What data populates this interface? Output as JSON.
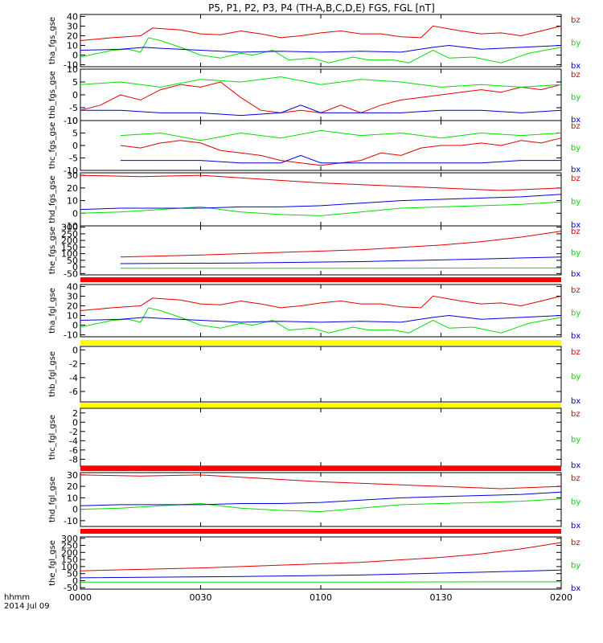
{
  "header": {
    "title": "P5, P1, P2, P3, P4 (TH-A,B,C,D,E) FGS, FGL [nT]"
  },
  "footer": {
    "time_label": "hhmm",
    "date_label": "2014 Jul 09"
  },
  "colors": {
    "bz": "#e00000",
    "by": "#00e000",
    "bx": "#0000e0",
    "red_bar": "#ff0000",
    "yellow_bar": "#ffff00",
    "axis": "#000000"
  },
  "chart_data": {
    "type": "line",
    "xlabel": "",
    "x_ticks": [
      "0000",
      "0030",
      "0100",
      "0130",
      "0200"
    ],
    "x_range_minutes": [
      0,
      120
    ],
    "panels": [
      {
        "ylabel": "tha_fgs_gse",
        "ylim": [
          -12,
          42
        ],
        "yticks": [
          "40",
          "30",
          "20",
          "10",
          "0",
          "-10"
        ],
        "series": [
          {
            "name": "bz",
            "x": [
              0,
              8,
              15,
              18,
              25,
              30,
              35,
              40,
              45,
              50,
              55,
              60,
              65,
              70,
              75,
              80,
              85,
              88,
              95,
              100,
              105,
              110,
              115,
              120
            ],
            "y": [
              15,
              18,
              20,
              28,
              26,
              22,
              21,
              25,
              22,
              18,
              20,
              23,
              25,
              22,
              22,
              19,
              18,
              30,
              25,
              22,
              23,
              20,
              25,
              30
            ]
          },
          {
            "name": "by",
            "x": [
              0,
              8,
              12,
              15,
              17,
              20,
              25,
              30,
              35,
              40,
              43,
              48,
              52,
              58,
              62,
              68,
              72,
              78,
              82,
              88,
              92,
              98,
              105,
              112,
              120
            ],
            "y": [
              -2,
              5,
              6,
              3,
              18,
              15,
              8,
              0,
              -3,
              2,
              0,
              5,
              -5,
              -3,
              -8,
              -2,
              -5,
              -5,
              -8,
              5,
              -3,
              -2,
              -8,
              2,
              8
            ]
          },
          {
            "name": "bx",
            "x": [
              0,
              10,
              16,
              20,
              30,
              40,
              50,
              60,
              70,
              80,
              88,
              92,
              100,
              110,
              120
            ],
            "y": [
              5,
              6,
              8,
              7,
              5,
              3,
              4,
              3,
              4,
              3,
              8,
              10,
              6,
              8,
              10
            ]
          }
        ]
      },
      {
        "ylabel": "thb_fgs_gse",
        "ylim": [
          -10,
          10
        ],
        "yticks": [
          "10",
          "5",
          "0",
          "-5",
          "-10"
        ],
        "series": [
          {
            "name": "bz",
            "x": [
              0,
              5,
              10,
              15,
              20,
              25,
              30,
              35,
              40,
              45,
              50,
              55,
              60,
              65,
              70,
              75,
              80,
              85,
              90,
              95,
              100,
              105,
              110,
              115,
              120
            ],
            "y": [
              -6,
              -4,
              0,
              -2,
              2,
              4,
              3,
              5,
              -1,
              -6,
              -7,
              -6,
              -7,
              -4,
              -7,
              -4,
              -2,
              -1,
              0,
              1,
              2,
              1,
              3,
              2,
              4
            ]
          },
          {
            "name": "by",
            "x": [
              0,
              10,
              20,
              30,
              40,
              50,
              60,
              70,
              80,
              90,
              100,
              110,
              120
            ],
            "y": [
              4,
              5,
              3,
              6,
              5,
              7,
              4,
              6,
              5,
              3,
              4,
              3,
              4
            ]
          },
          {
            "name": "bx",
            "x": [
              0,
              10,
              20,
              30,
              40,
              50,
              55,
              60,
              70,
              80,
              90,
              100,
              110,
              120
            ],
            "y": [
              -6,
              -6,
              -7,
              -7,
              -8,
              -7,
              -4,
              -7,
              -7,
              -7,
              -6,
              -6,
              -7,
              -6
            ]
          }
        ]
      },
      {
        "ylabel": "thc_fgs_gse",
        "ylim": [
          -10,
          10
        ],
        "yticks": [
          "10",
          "5",
          "0",
          "-5",
          "-10"
        ],
        "series": [
          {
            "name": "bz",
            "x": [
              10,
              15,
              20,
              25,
              30,
              35,
              40,
              45,
              50,
              55,
              60,
              65,
              70,
              75,
              80,
              85,
              90,
              95,
              100,
              105,
              110,
              115,
              120
            ],
            "y": [
              0,
              -1,
              1,
              2,
              1,
              -2,
              -3,
              -4,
              -6,
              -7,
              -8,
              -7,
              -6,
              -3,
              -4,
              -1,
              0,
              0,
              1,
              0,
              2,
              1,
              3
            ]
          },
          {
            "name": "by",
            "x": [
              10,
              20,
              30,
              40,
              50,
              60,
              70,
              80,
              90,
              100,
              110,
              120
            ],
            "y": [
              4,
              5,
              2,
              5,
              3,
              6,
              4,
              5,
              3,
              5,
              4,
              5
            ]
          },
          {
            "name": "bx",
            "x": [
              10,
              20,
              30,
              40,
              50,
              55,
              60,
              70,
              80,
              90,
              100,
              110,
              120
            ],
            "y": [
              -6,
              -6,
              -6,
              -7,
              -7,
              -4,
              -7,
              -7,
              -7,
              -7,
              -7,
              -6,
              -6
            ]
          }
        ]
      },
      {
        "ylabel": "thd_fgs_gse",
        "ylim": [
          -10,
          32
        ],
        "yticks": [
          "30",
          "20",
          "10",
          "0",
          "-10"
        ],
        "series": [
          {
            "name": "bz",
            "x": [
              0,
              15,
              30,
              45,
              60,
              75,
              90,
              105,
              120
            ],
            "y": [
              30,
              29,
              30,
              27,
              24,
              22,
              20,
              18,
              20
            ]
          },
          {
            "name": "by",
            "x": [
              0,
              10,
              20,
              30,
              40,
              50,
              60,
              70,
              80,
              90,
              100,
              110,
              120
            ],
            "y": [
              0,
              1,
              3,
              5,
              1,
              -1,
              -2,
              1,
              4,
              5,
              6,
              7,
              9
            ]
          },
          {
            "name": "bx",
            "x": [
              0,
              10,
              20,
              30,
              40,
              50,
              60,
              70,
              80,
              90,
              100,
              110,
              120
            ],
            "y": [
              3,
              4,
              4,
              4,
              5,
              5,
              6,
              8,
              10,
              11,
              12,
              13,
              15
            ]
          }
        ]
      },
      {
        "ylabel": "the_fgs_gse",
        "ylim": [
          -60,
          310
        ],
        "yticks": [
          "300",
          "250",
          "200",
          "150",
          "100",
          "50",
          "0",
          "-50"
        ],
        "series": [
          {
            "name": "bz",
            "x": [
              10,
              30,
              50,
              70,
              90,
              100,
              110,
              120
            ],
            "y": [
              75,
              90,
              110,
              130,
              165,
              190,
              225,
              270
            ]
          },
          {
            "name": "by",
            "x": [
              10,
              40,
              70,
              100,
              120
            ],
            "y": [
              -10,
              -10,
              -10,
              -8,
              -8
            ]
          },
          {
            "name": "bx",
            "x": [
              10,
              40,
              70,
              100,
              120
            ],
            "y": [
              25,
              30,
              40,
              60,
              75
            ]
          }
        ]
      },
      {
        "ylabel": "tha_fgl_gse",
        "ylim": [
          -12,
          42
        ],
        "yticks": [
          "40",
          "30",
          "20",
          "10",
          "0",
          "-10"
        ],
        "series": [
          {
            "name": "bz",
            "x": [
              0,
              8,
              15,
              18,
              25,
              30,
              35,
              40,
              45,
              50,
              55,
              60,
              65,
              70,
              75,
              80,
              85,
              88,
              95,
              100,
              105,
              110,
              115,
              120
            ],
            "y": [
              15,
              18,
              20,
              28,
              26,
              22,
              21,
              25,
              22,
              18,
              20,
              23,
              25,
              22,
              22,
              19,
              18,
              30,
              25,
              22,
              23,
              20,
              25,
              30
            ]
          },
          {
            "name": "by",
            "x": [
              0,
              8,
              12,
              15,
              17,
              20,
              25,
              30,
              35,
              40,
              43,
              48,
              52,
              58,
              62,
              68,
              72,
              78,
              82,
              88,
              92,
              98,
              105,
              112,
              120
            ],
            "y": [
              -2,
              5,
              6,
              3,
              18,
              15,
              8,
              0,
              -3,
              2,
              0,
              5,
              -5,
              -3,
              -8,
              -2,
              -5,
              -5,
              -8,
              5,
              -3,
              -2,
              -8,
              2,
              8
            ]
          },
          {
            "name": "bx",
            "x": [
              0,
              10,
              16,
              20,
              30,
              40,
              50,
              60,
              70,
              80,
              88,
              92,
              100,
              110,
              120
            ],
            "y": [
              5,
              6,
              8,
              7,
              5,
              3,
              4,
              3,
              4,
              3,
              8,
              10,
              6,
              8,
              10
            ]
          }
        ]
      },
      {
        "ylabel": "thb_fgl_gse",
        "ylim": [
          -7.5,
          0.5
        ],
        "yticks": [
          "0",
          "-2",
          "-4",
          "-6"
        ],
        "series": []
      },
      {
        "ylabel": "thc_fgl_gse",
        "ylim": [
          -9.5,
          3
        ],
        "yticks": [
          "2",
          "0",
          "-2",
          "-4",
          "-6",
          "-8"
        ],
        "series": []
      },
      {
        "ylabel": "thd_fgl_gse",
        "ylim": [
          -15,
          32
        ],
        "yticks": [
          "30",
          "20",
          "10",
          "0",
          "-10"
        ],
        "series": [
          {
            "name": "bz",
            "x": [
              0,
              15,
              30,
              45,
              60,
              75,
              90,
              105,
              120
            ],
            "y": [
              30,
              29,
              30,
              27,
              24,
              22,
              20,
              18,
              20
            ]
          },
          {
            "name": "by",
            "x": [
              0,
              10,
              20,
              30,
              40,
              50,
              60,
              70,
              80,
              90,
              100,
              110,
              120
            ],
            "y": [
              0,
              1,
              3,
              5,
              1,
              -1,
              -2,
              1,
              4,
              5,
              6,
              7,
              9
            ]
          },
          {
            "name": "bx",
            "x": [
              0,
              10,
              20,
              30,
              40,
              50,
              60,
              70,
              80,
              90,
              100,
              110,
              120
            ],
            "y": [
              3,
              4,
              4,
              4,
              5,
              5,
              6,
              8,
              10,
              11,
              12,
              13,
              15
            ]
          }
        ]
      },
      {
        "ylabel": "the_fgl_gse",
        "ylim": [
          -60,
          310
        ],
        "yticks": [
          "300",
          "250",
          "200",
          "150",
          "100",
          "50",
          "0",
          "-50"
        ],
        "series": [
          {
            "name": "bz",
            "x": [
              0,
              30,
              50,
              70,
              90,
              100,
              110,
              120
            ],
            "y": [
              70,
              90,
              110,
              130,
              165,
              190,
              225,
              270
            ]
          },
          {
            "name": "by",
            "x": [
              0,
              40,
              70,
              100,
              120
            ],
            "y": [
              -10,
              -10,
              -10,
              -8,
              -8
            ]
          },
          {
            "name": "bx",
            "x": [
              0,
              40,
              70,
              100,
              120
            ],
            "y": [
              20,
              30,
              40,
              60,
              75
            ]
          }
        ]
      }
    ],
    "legend": [
      "bz",
      "by",
      "bx"
    ],
    "data_gap_bars": [
      {
        "after_panel": 4,
        "color": "red"
      },
      {
        "after_panel": 5,
        "color": "yellow"
      },
      {
        "after_panel": 6,
        "color": "yellow"
      },
      {
        "after_panel": 7,
        "color": "red"
      },
      {
        "after_panel": 8,
        "color": "red"
      }
    ]
  }
}
